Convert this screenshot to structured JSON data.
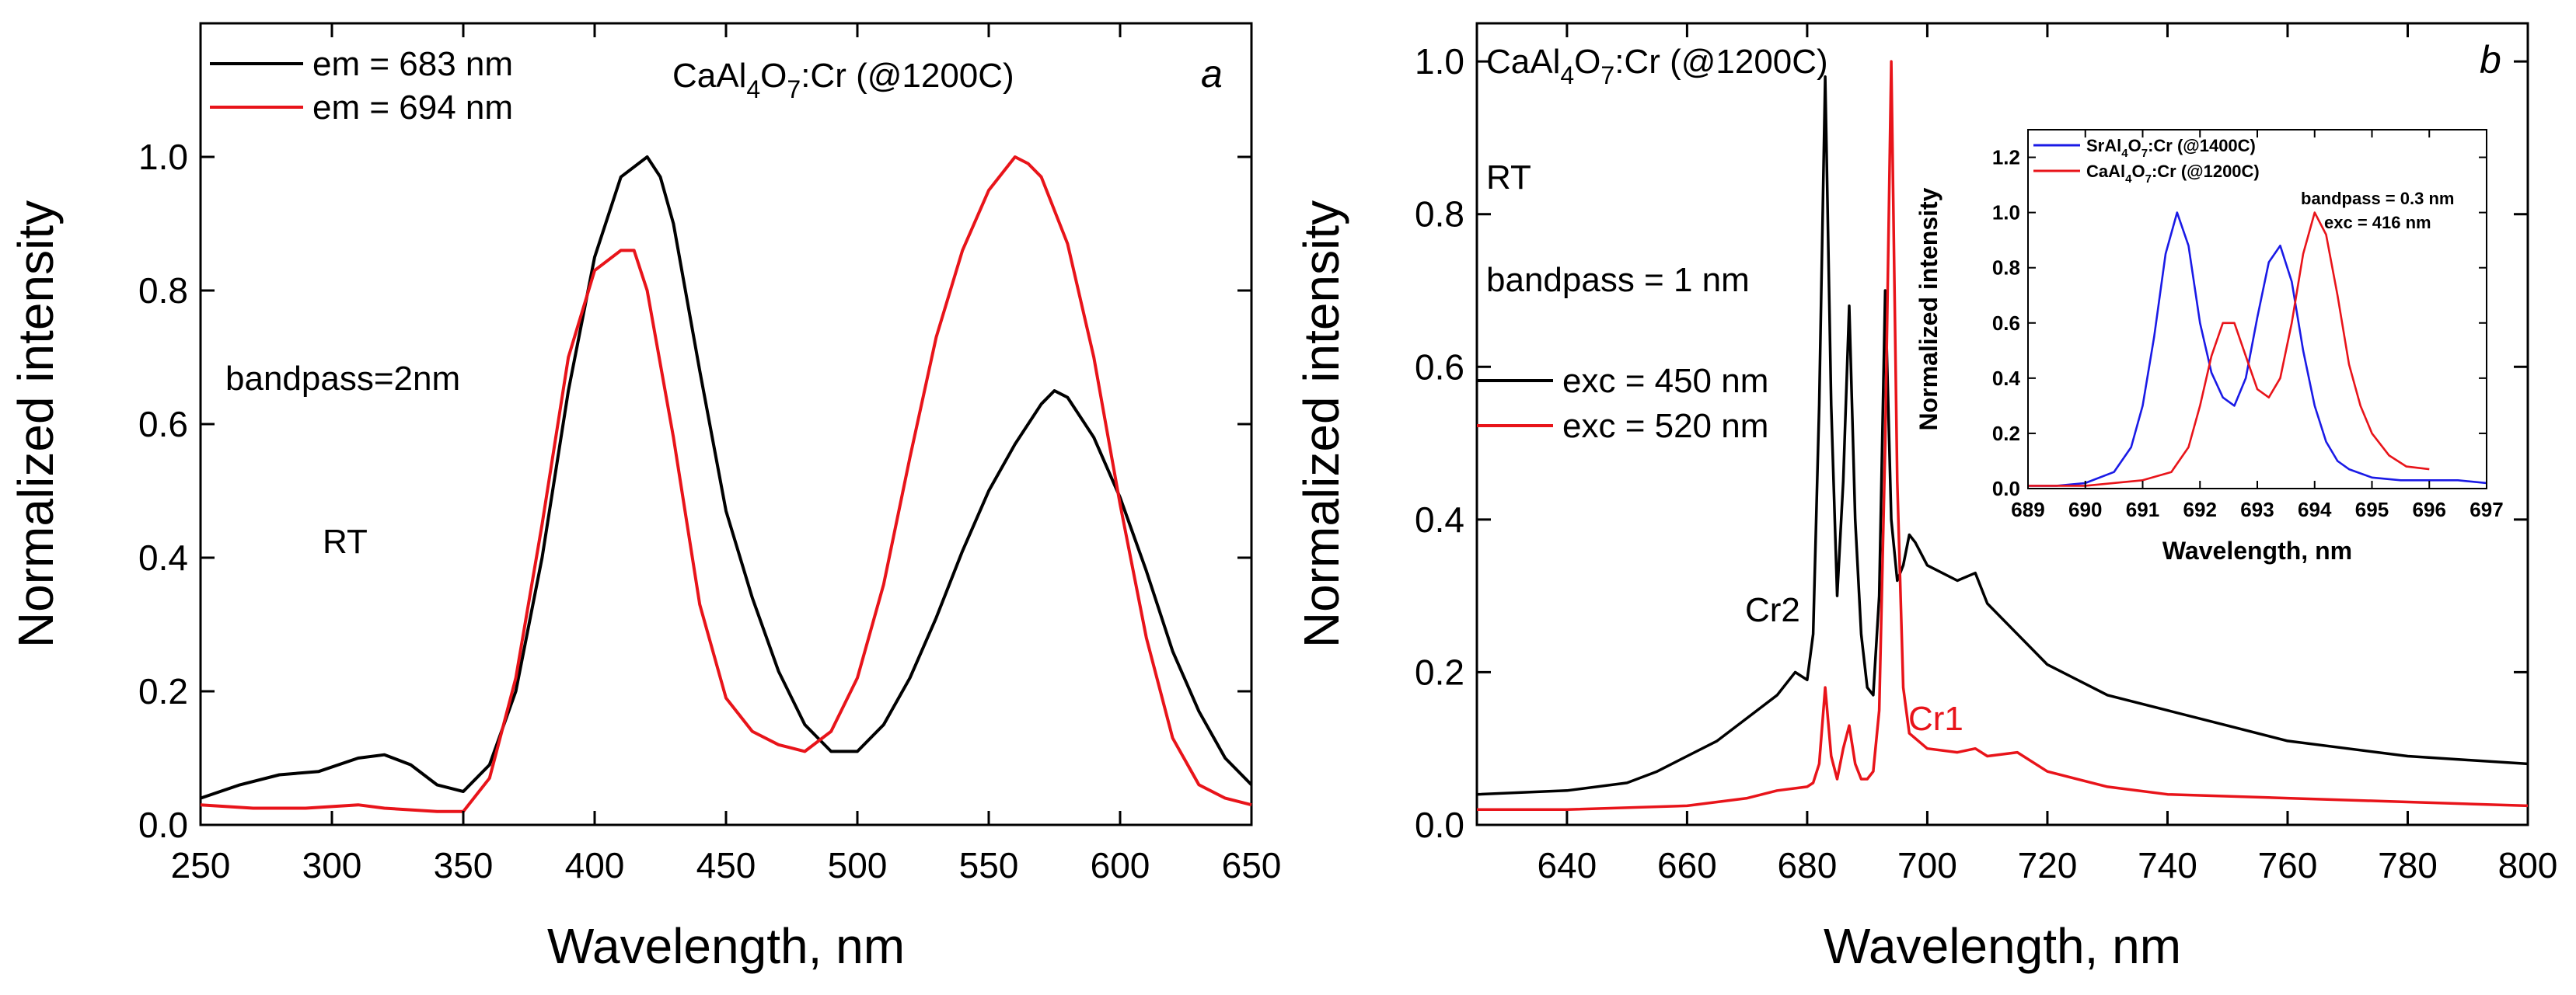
{
  "chart_data": [
    {
      "panel": "a",
      "type": "line",
      "title": "CaAl4O7:Cr (@1200C)",
      "title_parts": {
        "pre": "CaAl",
        "sub1": "4",
        "mid": "O",
        "sub2": "7",
        "post": ":Cr (@1200C)"
      },
      "panel_letter": "a",
      "xlabel": "Wavelength, nm",
      "ylabel": "Normalized intensity",
      "xlim": [
        250,
        650
      ],
      "ylim": [
        0,
        1.2
      ],
      "xticks": [
        "250",
        "300",
        "350",
        "400",
        "450",
        "500",
        "550",
        "600",
        "650"
      ],
      "yticks": [
        "0.0",
        "0.2",
        "0.4",
        "0.6",
        "0.8",
        "1.0"
      ],
      "legend_position": "top-left",
      "annotations": [
        "bandpass=2nm",
        "RT"
      ],
      "series": [
        {
          "name": "em = 683 nm",
          "color": "#000000",
          "x": [
            250,
            265,
            280,
            295,
            310,
            320,
            330,
            340,
            350,
            360,
            370,
            380,
            390,
            400,
            410,
            420,
            425,
            430,
            440,
            450,
            460,
            470,
            480,
            490,
            500,
            510,
            520,
            530,
            540,
            550,
            560,
            570,
            575,
            580,
            590,
            600,
            610,
            620,
            630,
            640,
            650
          ],
          "values": [
            0.04,
            0.06,
            0.075,
            0.08,
            0.1,
            0.105,
            0.09,
            0.06,
            0.05,
            0.09,
            0.2,
            0.4,
            0.65,
            0.85,
            0.97,
            1.0,
            0.97,
            0.9,
            0.68,
            0.47,
            0.34,
            0.23,
            0.15,
            0.11,
            0.11,
            0.15,
            0.22,
            0.31,
            0.41,
            0.5,
            0.57,
            0.63,
            0.65,
            0.64,
            0.58,
            0.49,
            0.38,
            0.26,
            0.17,
            0.1,
            0.06
          ]
        },
        {
          "name": "em = 694 nm",
          "color": "#e8141a",
          "x": [
            250,
            270,
            290,
            310,
            320,
            340,
            350,
            360,
            370,
            380,
            390,
            400,
            410,
            415,
            420,
            430,
            440,
            450,
            460,
            470,
            480,
            490,
            500,
            510,
            520,
            530,
            540,
            550,
            560,
            565,
            570,
            580,
            590,
            600,
            610,
            620,
            630,
            640,
            650
          ],
          "values": [
            0.03,
            0.025,
            0.025,
            0.03,
            0.025,
            0.02,
            0.02,
            0.07,
            0.22,
            0.45,
            0.7,
            0.83,
            0.86,
            0.86,
            0.8,
            0.58,
            0.33,
            0.19,
            0.14,
            0.12,
            0.11,
            0.14,
            0.22,
            0.36,
            0.55,
            0.73,
            0.86,
            0.95,
            1.0,
            0.99,
            0.97,
            0.87,
            0.7,
            0.48,
            0.28,
            0.13,
            0.06,
            0.04,
            0.03
          ]
        }
      ]
    },
    {
      "panel": "b",
      "type": "line",
      "title": "CaAl4O7:Cr (@1200C)",
      "title_parts": {
        "pre": "CaAl",
        "sub1": "4",
        "mid": "O",
        "sub2": "7",
        "post": ":Cr (@1200C)"
      },
      "panel_letter": "b",
      "xlabel": "Wavelength, nm",
      "ylabel": "Normalized intensity",
      "xlim": [
        625,
        800
      ],
      "ylim": [
        0,
        1.05
      ],
      "xticks": [
        "640",
        "660",
        "680",
        "700",
        "720",
        "740",
        "760",
        "780",
        "800"
      ],
      "yticks": [
        "0.0",
        "0.2",
        "0.4",
        "0.6",
        "0.8",
        "1.0"
      ],
      "legend_position": "middle-left",
      "annotations": [
        "RT",
        "bandpass = 1 nm",
        "Cr2",
        "Cr1"
      ],
      "series": [
        {
          "name": "exc = 450 nm",
          "color": "#000000",
          "x": [
            625,
            640,
            650,
            655,
            660,
            665,
            670,
            675,
            678,
            680,
            681,
            682,
            683,
            684,
            685,
            686,
            687,
            688,
            689,
            690,
            691,
            692,
            693,
            694,
            695,
            696,
            697,
            698,
            700,
            705,
            708,
            710,
            715,
            720,
            730,
            740,
            750,
            760,
            770,
            780,
            790,
            800
          ],
          "values": [
            0.04,
            0.045,
            0.055,
            0.07,
            0.09,
            0.11,
            0.14,
            0.17,
            0.2,
            0.19,
            0.25,
            0.55,
            0.98,
            0.55,
            0.3,
            0.45,
            0.68,
            0.4,
            0.25,
            0.18,
            0.17,
            0.3,
            0.7,
            0.4,
            0.32,
            0.34,
            0.38,
            0.37,
            0.34,
            0.32,
            0.33,
            0.29,
            0.25,
            0.21,
            0.17,
            0.15,
            0.13,
            0.11,
            0.1,
            0.09,
            0.085,
            0.08
          ]
        },
        {
          "name": "exc = 520 nm",
          "color": "#e8141a",
          "x": [
            625,
            640,
            660,
            670,
            675,
            680,
            681,
            682,
            683,
            684,
            685,
            686,
            687,
            688,
            689,
            690,
            691,
            692,
            693,
            694,
            695,
            696,
            697,
            700,
            705,
            708,
            710,
            715,
            720,
            730,
            740,
            760,
            780,
            800
          ],
          "values": [
            0.02,
            0.02,
            0.025,
            0.035,
            0.045,
            0.05,
            0.055,
            0.08,
            0.18,
            0.09,
            0.06,
            0.1,
            0.13,
            0.08,
            0.06,
            0.06,
            0.07,
            0.15,
            0.5,
            1.0,
            0.45,
            0.18,
            0.12,
            0.1,
            0.095,
            0.1,
            0.09,
            0.095,
            0.07,
            0.05,
            0.04,
            0.035,
            0.03,
            0.025
          ]
        }
      ]
    },
    {
      "panel": "b-inset",
      "type": "line",
      "xlabel": "Wavelength, nm",
      "ylabel": "Normalized intensity",
      "xlim": [
        689,
        697
      ],
      "ylim": [
        0,
        1.3
      ],
      "xticks": [
        "689",
        "690",
        "691",
        "692",
        "693",
        "694",
        "695",
        "696",
        "697"
      ],
      "yticks": [
        "0.0",
        "0.2",
        "0.4",
        "0.6",
        "0.8",
        "1.0",
        "1.2"
      ],
      "legend_position": "top-left",
      "annotations": [
        "bandpass = 0.3 nm",
        "exc = 416 nm"
      ],
      "series": [
        {
          "name": "SrAl4O7:Cr (@1400C)",
          "name_parts": {
            "pre": "SrAl",
            "sub1": "4",
            "mid": "O",
            "sub2": "7",
            "post": ":Cr (@1400C)"
          },
          "color": "#1a1ae6",
          "x": [
            689,
            689.5,
            690,
            690.5,
            690.8,
            691,
            691.2,
            691.4,
            691.6,
            691.8,
            692,
            692.2,
            692.4,
            692.6,
            692.8,
            693,
            693.2,
            693.4,
            693.6,
            693.8,
            694,
            694.2,
            694.4,
            694.6,
            695,
            695.5,
            696,
            696.5,
            697
          ],
          "values": [
            0.01,
            0.01,
            0.02,
            0.06,
            0.15,
            0.3,
            0.55,
            0.85,
            1.0,
            0.88,
            0.6,
            0.42,
            0.33,
            0.3,
            0.4,
            0.62,
            0.82,
            0.88,
            0.75,
            0.5,
            0.3,
            0.17,
            0.1,
            0.07,
            0.04,
            0.03,
            0.03,
            0.03,
            0.02
          ]
        },
        {
          "name": "CaAl4O7:Cr (@1200C)",
          "name_parts": {
            "pre": "CaAl",
            "sub1": "4",
            "mid": "O",
            "sub2": "7",
            "post": ":Cr (@1200C)"
          },
          "color": "#e8141a",
          "x": [
            689,
            690,
            691,
            691.5,
            691.8,
            692,
            692.2,
            692.4,
            692.6,
            692.8,
            693,
            693.2,
            693.4,
            693.6,
            693.8,
            694,
            694.2,
            694.4,
            694.6,
            694.8,
            695,
            695.3,
            695.6,
            696
          ],
          "values": [
            0.01,
            0.01,
            0.03,
            0.06,
            0.15,
            0.3,
            0.48,
            0.6,
            0.6,
            0.48,
            0.36,
            0.33,
            0.4,
            0.6,
            0.85,
            1.0,
            0.92,
            0.7,
            0.45,
            0.3,
            0.2,
            0.12,
            0.08,
            0.07
          ]
        }
      ]
    }
  ]
}
